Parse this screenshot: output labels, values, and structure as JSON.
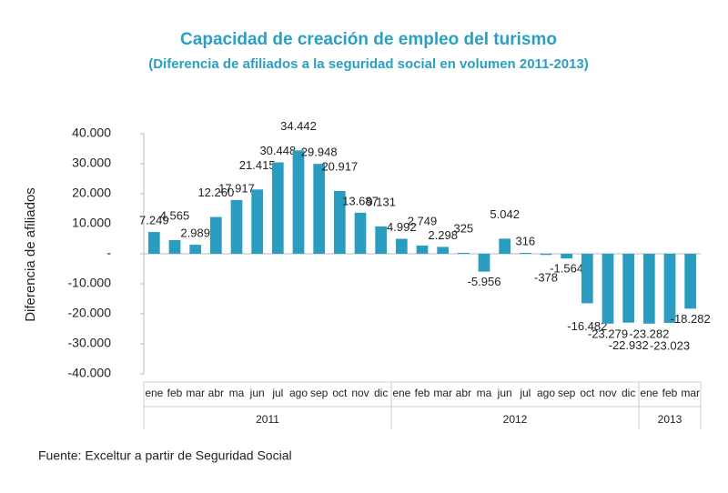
{
  "chart_data": {
    "type": "bar",
    "title": "Capacidad de creación de empleo del turismo",
    "subtitle": "(Diferencia de afiliados a la seguridad social en volumen 2011-2013)",
    "y_label": "Diferencia de afiliados",
    "source": "Fuente: Exceltur a partir de Seguridad Social",
    "categories": [
      "ene",
      "feb",
      "mar",
      "abr",
      "ma",
      "jun",
      "jul",
      "ago",
      "sep",
      "oct",
      "nov",
      "dic",
      "ene",
      "feb",
      "mar",
      "abr",
      "ma",
      "jun",
      "jul",
      "ago",
      "sep",
      "oct",
      "nov",
      "dic",
      "ene",
      "feb",
      "mar"
    ],
    "years": [
      {
        "name": "2011",
        "months": 12
      },
      {
        "name": "2012",
        "months": 12
      },
      {
        "name": "2013",
        "months": 3
      }
    ],
    "values": [
      7249,
      4565,
      2989,
      12260,
      17917,
      21415,
      30448,
      34442,
      29948,
      20917,
      13687,
      9131,
      4992,
      2749,
      2298,
      325,
      -5956,
      5042,
      316,
      -378,
      -1564,
      -16482,
      -23279,
      -22932,
      -23282,
      -23023,
      -18282
    ],
    "value_labels": [
      "7.249",
      "4.565",
      "2.989",
      "12.260",
      "17.917",
      "21.415",
      "30.448",
      "34.442",
      "29.948",
      "20.917",
      "13.687",
      "9.131",
      "4.992",
      "2.749",
      "2.298",
      "325",
      "-5.956",
      "5.042",
      "316",
      "-378",
      "-1.564",
      "-16.482",
      "-23.279",
      "-22.932",
      "-23.282",
      "-23.023",
      "-18.282"
    ],
    "color": "#2a9cc0",
    "ylim": [
      -40000,
      40000
    ],
    "yticks": [
      {
        "value": 40000,
        "label": "40.000"
      },
      {
        "value": 30000,
        "label": "30.000"
      },
      {
        "value": 20000,
        "label": "20.000"
      },
      {
        "value": 10000,
        "label": "10.000"
      },
      {
        "value": 0,
        "label": "-"
      },
      {
        "value": -10000,
        "label": "-10.000"
      },
      {
        "value": -20000,
        "label": "-20.000"
      },
      {
        "value": -30000,
        "label": "-30.000"
      },
      {
        "value": -40000,
        "label": "-40.000"
      }
    ]
  }
}
